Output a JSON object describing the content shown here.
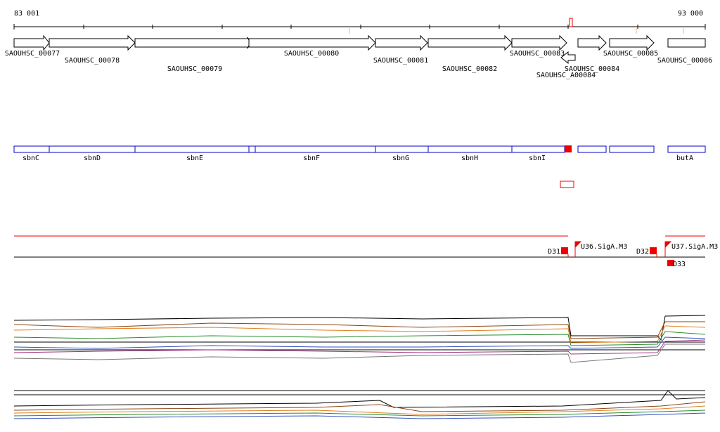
{
  "ruler": {
    "start": "83 001",
    "end": "93 000"
  },
  "genes": [
    "SAOUHSC_00077",
    "SAOUHSC_00078",
    "SAOUHSC_00079",
    "SAOUHSC_00080",
    "SAOUHSC_00081",
    "SAOUHSC_00082",
    "SAOUHSC_00083",
    "SAOUHSC_A00084",
    "SAOUHSC_00084",
    "SAOUHSC_00085",
    "SAOUHSC_00086"
  ],
  "operons": [
    "sbnC",
    "sbnD",
    "sbnE",
    "sbnF",
    "sbnG",
    "sbnH",
    "sbnI",
    "butA"
  ],
  "features": [
    "D31",
    "U36.SigA.M3",
    "D32",
    "U37.SigA.M3",
    "D33"
  ]
}
